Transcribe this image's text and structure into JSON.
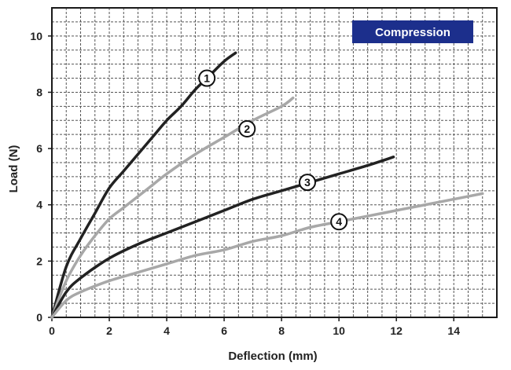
{
  "chart_data": {
    "type": "line",
    "title": "",
    "badge": "Compression",
    "xlabel": "Deflection (mm)",
    "ylabel": "Load (N)",
    "xlim": [
      0,
      15.5
    ],
    "ylim": [
      0,
      11
    ],
    "x_ticks": [
      "0",
      "2",
      "4",
      "6",
      "8",
      "10",
      "12",
      "14"
    ],
    "y_ticks": [
      "0",
      "2",
      "4",
      "6",
      "8",
      "10"
    ],
    "grid": true,
    "series": [
      {
        "name": "1",
        "color": "#222222",
        "x": [
          0,
          0.5,
          1,
          1.5,
          2,
          2.5,
          3,
          3.5,
          4,
          4.5,
          5,
          5.5,
          6,
          6.4
        ],
        "y": [
          0,
          1.8,
          2.8,
          3.7,
          4.6,
          5.2,
          5.8,
          6.4,
          7.0,
          7.5,
          8.1,
          8.6,
          9.1,
          9.4
        ]
      },
      {
        "name": "2",
        "color": "#a8a8a8",
        "x": [
          0,
          0.5,
          1,
          1.5,
          2,
          2.5,
          3,
          3.5,
          4,
          5,
          6,
          7,
          8,
          8.4
        ],
        "y": [
          0,
          1.3,
          2.2,
          2.9,
          3.5,
          3.9,
          4.3,
          4.7,
          5.1,
          5.8,
          6.4,
          7.0,
          7.5,
          7.8
        ]
      },
      {
        "name": "3",
        "color": "#222222",
        "x": [
          0,
          0.5,
          1,
          2,
          3,
          4,
          5,
          6,
          7,
          8,
          9,
          10,
          11,
          11.9
        ],
        "y": [
          0,
          0.9,
          1.4,
          2.1,
          2.6,
          3.0,
          3.4,
          3.8,
          4.2,
          4.5,
          4.8,
          5.1,
          5.4,
          5.7
        ]
      },
      {
        "name": "4",
        "color": "#a8a8a8",
        "x": [
          0,
          0.5,
          1,
          2,
          3,
          4,
          5,
          6,
          7,
          8,
          9,
          10,
          11,
          12,
          13,
          14,
          15
        ],
        "y": [
          0,
          0.6,
          0.9,
          1.3,
          1.6,
          1.9,
          2.2,
          2.4,
          2.7,
          2.9,
          3.2,
          3.4,
          3.6,
          3.8,
          4.0,
          4.2,
          4.4
        ]
      }
    ],
    "markers": [
      {
        "label": "1",
        "x": 5.4,
        "y": 8.5
      },
      {
        "label": "2",
        "x": 6.8,
        "y": 6.7
      },
      {
        "label": "3",
        "x": 8.9,
        "y": 4.8
      },
      {
        "label": "4",
        "x": 10.0,
        "y": 3.4
      }
    ]
  }
}
